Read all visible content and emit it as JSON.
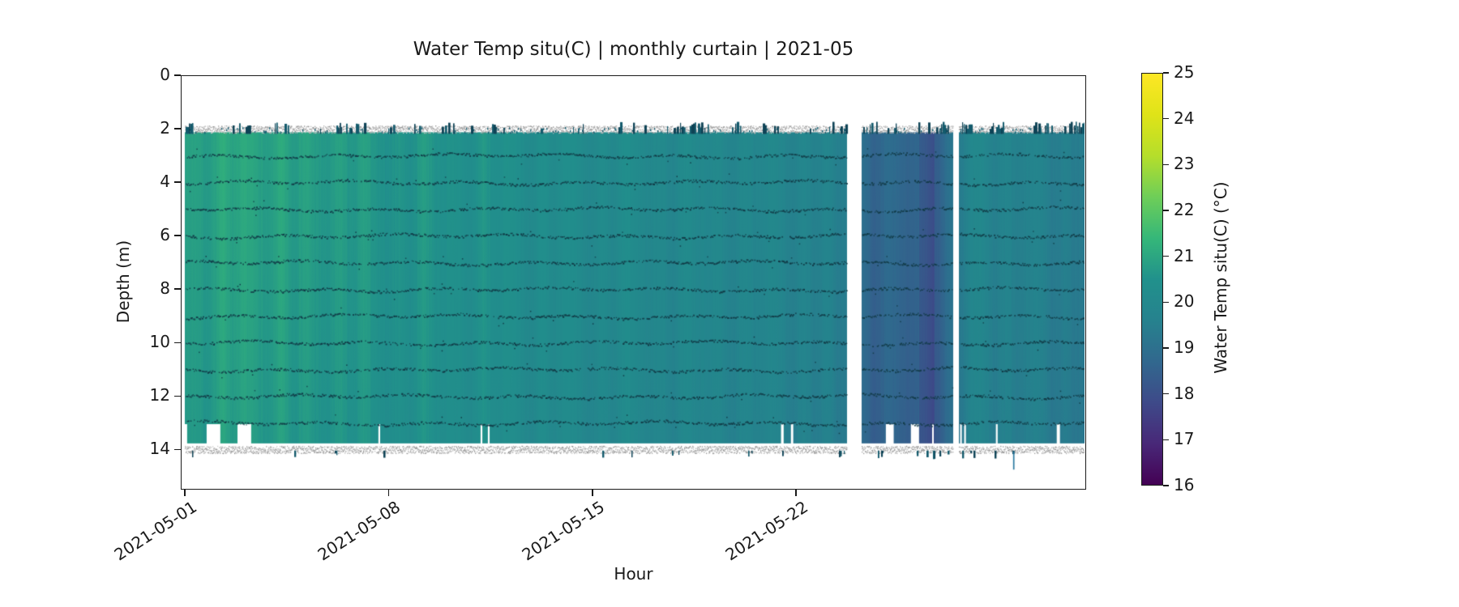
{
  "figure": {
    "title": "Water Temp situ(C) | monthly curtain | 2021-05",
    "xlabel": "Hour",
    "ylabel": "Depth (m)",
    "background": "#ffffff"
  },
  "chart_data": {
    "type": "heatmap",
    "title": "Water Temp situ(C) | monthly curtain | 2021-05",
    "xlabel": "Hour",
    "ylabel": "Depth (m)",
    "x_tick_labels": [
      "2021-05-01",
      "2021-05-08",
      "2021-05-15",
      "2021-05-22"
    ],
    "x_tick_days": [
      1,
      8,
      15,
      22
    ],
    "xlim_days": [
      0.861,
      31.96
    ],
    "y_tick_labels": [
      "0",
      "2",
      "4",
      "6",
      "8",
      "10",
      "12",
      "14"
    ],
    "y_ticks_m": [
      0,
      2,
      4,
      6,
      8,
      10,
      12,
      14
    ],
    "ylim_m": [
      15.5,
      0
    ],
    "y_axis_inverted": true,
    "grid": false,
    "colorbar": {
      "label": "Water Temp situ(C) (°C)",
      "vmin": 16,
      "vmax": 25,
      "tick_values": [
        25,
        24,
        23,
        22,
        21,
        20,
        19,
        18,
        17,
        16
      ],
      "tick_labels": [
        "25",
        "24",
        "23",
        "22",
        "21",
        "20",
        "19",
        "18",
        "17",
        "16"
      ],
      "colormap": "viridis",
      "colormap_rgb": [
        [
          68,
          1,
          84
        ],
        [
          72,
          40,
          120
        ],
        [
          62,
          74,
          137
        ],
        [
          49,
          104,
          142
        ],
        [
          38,
          130,
          142
        ],
        [
          33,
          145,
          140
        ],
        [
          53,
          183,
          121
        ],
        [
          110,
          206,
          88
        ],
        [
          181,
          222,
          43
        ],
        [
          223,
          227,
          24
        ],
        [
          253,
          231,
          37
        ]
      ]
    },
    "depth_extent_m": [
      2.05,
      13.95
    ],
    "surface_noise_band_m": 2.0,
    "bottom_noise_band_m": 13.95,
    "sensor_line_depths_m": [
      3,
      4,
      5,
      6,
      7,
      8,
      9,
      10,
      11,
      12,
      13
    ],
    "days": [
      1,
      2,
      3,
      4,
      5,
      6,
      7,
      8,
      9,
      10,
      11,
      12,
      13,
      14,
      15,
      16,
      17,
      18,
      19,
      20,
      21,
      22,
      23,
      24,
      25,
      26,
      27,
      28,
      29,
      30,
      31
    ],
    "daily_mean_temp_c": [
      20.9,
      20.85,
      21.0,
      20.9,
      20.75,
      20.8,
      20.65,
      20.55,
      20.6,
      20.45,
      20.5,
      20.35,
      20.3,
      20.2,
      20.1,
      20.15,
      20.0,
      20.05,
      19.9,
      19.95,
      19.85,
      19.8,
      19.75,
      18.9,
      18.75,
      18.55,
      18.7,
      19.85,
      19.75,
      19.65,
      19.5
    ],
    "diurnal_amplitude_c": 0.12,
    "vertical_temp_drop_c": 0.16,
    "data_gaps_days": [
      [
        23.74,
        24.24
      ],
      [
        27.38,
        27.58
      ]
    ],
    "data_gaps_dates": [
      "2021-05-23 ~18:00 to 2021-05-24 ~06:00",
      "2021-05-27 ~09:00 to 2021-05-27 ~14:00"
    ],
    "cold_column_days": [
      26.2,
      26.75
    ],
    "cold_column_delta_c": -0.45,
    "section_clamps": [
      {
        "day_range": [
          1.0,
          23.74
        ],
        "min_c": 19.5
      },
      {
        "day_range": [
          24.24,
          27.38
        ],
        "max_c": 19.1
      },
      {
        "day_range": [
          27.58,
          31.96
        ],
        "min_c": 19.4
      }
    ],
    "bottom_missing_segments_days": [
      [
        0.95,
        1.08
      ],
      [
        1.75,
        2.22
      ],
      [
        2.81,
        3.28
      ],
      [
        7.65,
        7.71
      ],
      [
        11.16,
        11.22
      ],
      [
        11.41,
        11.47
      ],
      [
        21.48,
        21.57
      ],
      [
        21.82,
        21.9
      ],
      [
        25.08,
        25.35
      ],
      [
        25.94,
        26.22
      ],
      [
        26.67,
        26.72
      ],
      [
        27.63,
        27.69
      ],
      [
        27.77,
        27.83
      ],
      [
        28.86,
        28.92
      ],
      [
        30.95,
        31.06
      ]
    ],
    "top_dash_cluster_days": [
      [
        1.0,
        1.3
      ],
      [
        3.1,
        3.4
      ],
      [
        4.1,
        4.7
      ],
      [
        6.3,
        7.2
      ],
      [
        8.5,
        8.65
      ],
      [
        9.8,
        10.25
      ],
      [
        11.5,
        11.7
      ],
      [
        14.25,
        14.7
      ],
      [
        15.8,
        16.2
      ],
      [
        17.4,
        17.6
      ],
      [
        18.0,
        18.9
      ],
      [
        19.7,
        20.1
      ],
      [
        20.8,
        21.4
      ],
      [
        23.5,
        23.7
      ],
      [
        24.3,
        24.6
      ],
      [
        25.3,
        25.6
      ],
      [
        26.9,
        27.3
      ],
      [
        27.6,
        28.0
      ],
      [
        28.6,
        29.0
      ],
      [
        30.3,
        30.8
      ],
      [
        31.2,
        31.9
      ]
    ],
    "deep_outlier": {
      "day": 29.45,
      "max_depth_m": 14.75
    },
    "style_colors": {
      "noise_band_gray": "#a8a8a8",
      "sensor_dot_color": "#113a46",
      "dash_color": "#135a6c",
      "axis_color": "#1a1a1a"
    }
  }
}
